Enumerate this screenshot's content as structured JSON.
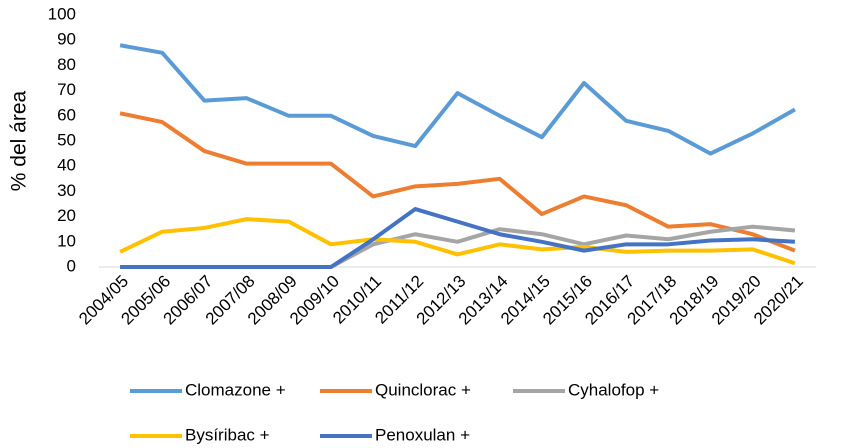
{
  "chart_data": {
    "type": "line",
    "y_label": "% del área",
    "categories": [
      "2004/05",
      "2005/06",
      "2006/07",
      "2007/08",
      "2008/09",
      "2009/10",
      "2010/11",
      "2011/12",
      "2012/13",
      "2013/14",
      "2014/15",
      "2015/16",
      "2016/17",
      "2017/18",
      "2018/19",
      "2019/20",
      "2020/21"
    ],
    "series": [
      {
        "name": "Clomazone +",
        "color": "#5b9bd5",
        "values": [
          88,
          85,
          66,
          67,
          60,
          60,
          52,
          48,
          69,
          60,
          51.5,
          73,
          58,
          54,
          45,
          53,
          62.5
        ]
      },
      {
        "name": "Quinclorac +",
        "color": "#ed7d31",
        "values": [
          61,
          57.5,
          46,
          41,
          41,
          41,
          28,
          32,
          33,
          35,
          21,
          28,
          24.5,
          16,
          17,
          13,
          6.5
        ]
      },
      {
        "name": "Cyhalofop +",
        "color": "#a5a5a5",
        "values": [
          0,
          0,
          0,
          0,
          0,
          0,
          9,
          13,
          10,
          15,
          13,
          9,
          12.5,
          11,
          14,
          16,
          14.5
        ]
      },
      {
        "name": "Bysíribac +",
        "color": "#ffc000",
        "values": [
          6,
          14,
          15.5,
          19,
          18,
          9,
          11,
          10,
          5,
          9,
          7,
          8,
          6,
          6.5,
          6.5,
          7,
          1.5
        ]
      },
      {
        "name": "Penoxulan +",
        "color": "#4472c4",
        "values": [
          0,
          0,
          0,
          0,
          0,
          0,
          11,
          23,
          18,
          13,
          10,
          6.5,
          9,
          9,
          10.5,
          11,
          10
        ]
      }
    ],
    "ylim": [
      0,
      100
    ],
    "yticks": [
      0,
      10,
      20,
      30,
      40,
      50,
      60,
      70,
      80,
      90,
      100
    ],
    "grid": false
  }
}
